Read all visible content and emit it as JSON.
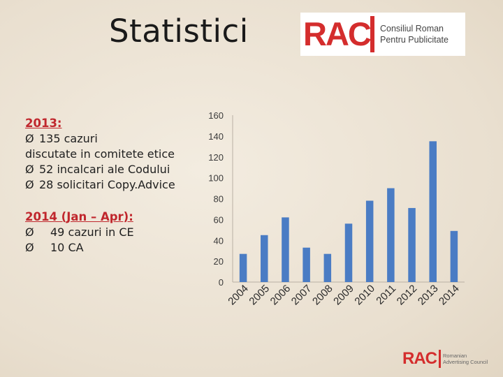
{
  "slide": {
    "title": "Statistici"
  },
  "logo": {
    "mark": "RAC",
    "line1": "Consiliul Roman",
    "line2": "Pentru Publicitate"
  },
  "stats": {
    "heading_2013": "2013:",
    "item1_a": "135 cazuri",
    "item1_b": "discutate in comitete etice",
    "item2": "52 incalcari ale Codului",
    "item3": "28 solicitari Copy.Advice",
    "heading_2014": "2014 (Jan – Apr):",
    "item4": "49 cazuri in CE",
    "item5": "10 CA",
    "arrow_glyph": "Ø"
  },
  "chart_data": {
    "type": "bar",
    "categories": [
      "2004",
      "2005",
      "2006",
      "2007",
      "2008",
      "2009",
      "2010",
      "2011",
      "2012",
      "2013",
      "2014"
    ],
    "values": [
      27,
      45,
      62,
      33,
      27,
      56,
      78,
      90,
      71,
      135,
      49
    ],
    "ylim": [
      0,
      160
    ],
    "yticks": [
      0,
      20,
      40,
      60,
      80,
      100,
      120,
      140,
      160
    ],
    "title": "",
    "xlabel": "",
    "ylabel": "",
    "grid": false,
    "bar_color": "#4a7cc4",
    "axis_color": "#b9b0a4"
  },
  "footer": {
    "mark": "RAC",
    "line1": "Romanian",
    "line2": "Advertising Council"
  }
}
